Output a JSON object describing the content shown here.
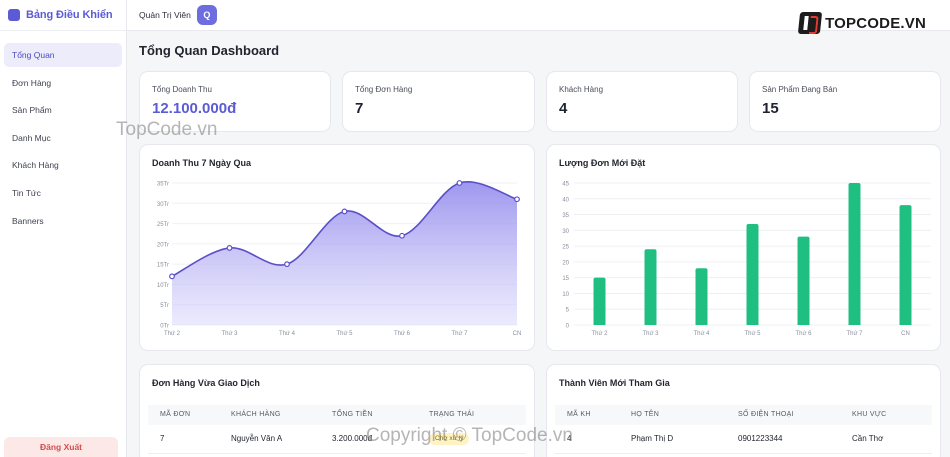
{
  "sidebar": {
    "title": "Bảng Điều Khiển",
    "items": [
      {
        "label": "Tổng Quan",
        "active": true
      },
      {
        "label": "Đơn Hàng"
      },
      {
        "label": "Sản Phẩm"
      },
      {
        "label": "Danh Mục"
      },
      {
        "label": "Khách Hàng"
      },
      {
        "label": "Tin Tức"
      },
      {
        "label": "Banners"
      }
    ],
    "logout": "Đăng Xuất"
  },
  "header": {
    "admin_label": "Quản Trị Viên",
    "avatar_letter": "Q",
    "logo_text": "TOPCODE.VN"
  },
  "page": {
    "title": "Tổng Quan Dashboard"
  },
  "stats": [
    {
      "label": "Tổng Doanh Thu",
      "value": "12.100.000đ"
    },
    {
      "label": "Tổng Đơn Hàng",
      "value": "7"
    },
    {
      "label": "Khách Hàng",
      "value": "4"
    },
    {
      "label": "Sản Phẩm Đang Bán",
      "value": "15"
    }
  ],
  "colors": {
    "accent": "#5b5bd6",
    "bar": "#1fbf82",
    "line": "#5b4fc8"
  },
  "chart_data": [
    {
      "type": "area",
      "title": "Doanh Thu 7 Ngày Qua",
      "categories": [
        "Thứ 2",
        "Thứ 3",
        "Thứ 4",
        "Thứ 5",
        "Thứ 6",
        "Thứ 7",
        "CN"
      ],
      "values": [
        12,
        19,
        15,
        28,
        22,
        35,
        31
      ],
      "yticks": [
        "0Tr",
        "5Tr",
        "10Tr",
        "15Tr",
        "20Tr",
        "25Tr",
        "30Tr",
        "35Tr"
      ],
      "ylim": [
        0,
        35
      ],
      "grid": true
    },
    {
      "type": "bar",
      "title": "Lượng Đơn Mới Đặt",
      "categories": [
        "Thứ 2",
        "Thứ 3",
        "Thứ 4",
        "Thứ 5",
        "Thứ 6",
        "Thứ 7",
        "CN"
      ],
      "values": [
        15,
        24,
        18,
        32,
        28,
        45,
        38
      ],
      "yticks": [
        "0",
        "5",
        "10",
        "15",
        "20",
        "25",
        "30",
        "35",
        "40",
        "45"
      ],
      "ylim": [
        0,
        45
      ],
      "grid": true
    }
  ],
  "orders": {
    "title": "Đơn Hàng Vừa Giao Dịch",
    "columns": [
      "MÃ ĐƠN",
      "KHÁCH HÀNG",
      "TỔNG TIỀN",
      "TRẠNG THÁI"
    ],
    "rows": [
      {
        "id": "7",
        "customer": "Nguyễn Văn A",
        "total": "3.200.000đ",
        "status": "Chờ xử lý"
      }
    ]
  },
  "members": {
    "title": "Thành Viên Mới Tham Gia",
    "columns": [
      "MÃ KH",
      "HỌ TÊN",
      "SỐ ĐIỆN THOẠI",
      "KHU VỰC"
    ],
    "rows": [
      {
        "id": "4",
        "name": "Phạm Thị D",
        "phone": "0901223344",
        "area": "Cần Thơ"
      }
    ]
  },
  "watermarks": [
    "TopCode.vn",
    "Copyright © TopCode.vn"
  ]
}
